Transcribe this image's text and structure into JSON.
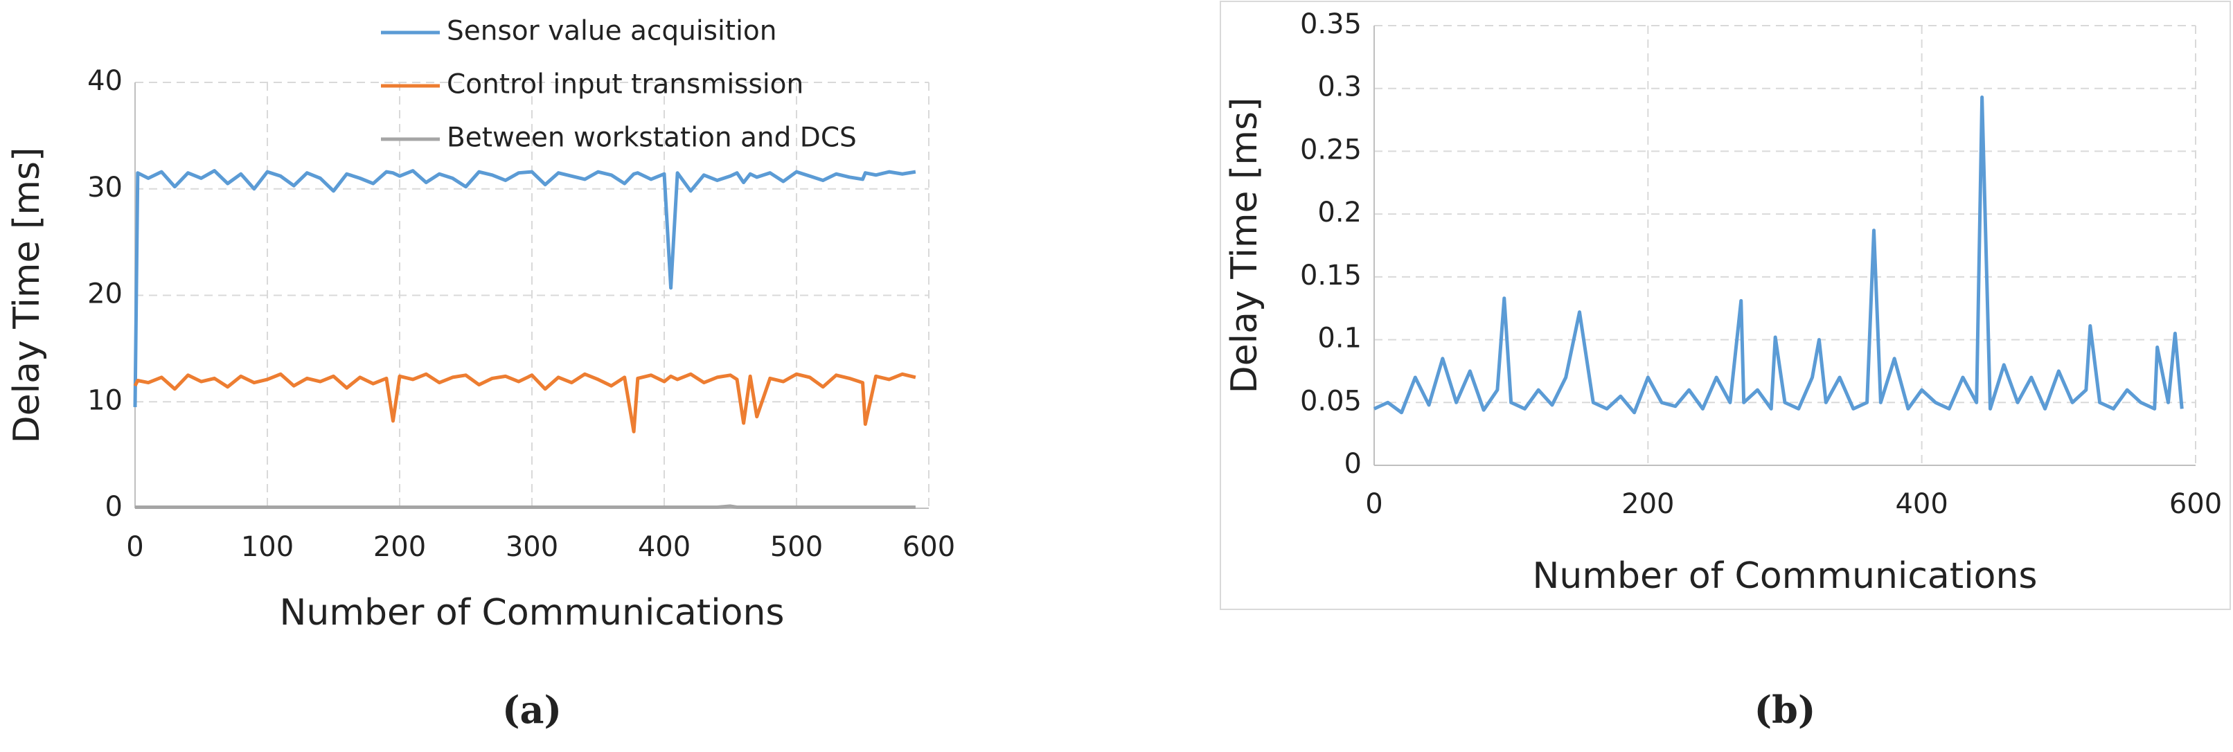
{
  "chart_data": [
    {
      "type": "line",
      "xlabel": "Number of Communications",
      "ylabel": "Delay Time [ms]",
      "caption": "(a)",
      "xlim": [
        0,
        600
      ],
      "xticks": [
        0,
        100,
        200,
        300,
        400,
        500,
        600
      ],
      "ylim": [
        0,
        40
      ],
      "yticks": [
        0,
        10,
        20,
        30,
        40
      ],
      "grid": true,
      "x": [
        0,
        2,
        10,
        20,
        30,
        40,
        50,
        60,
        70,
        80,
        90,
        100,
        110,
        120,
        130,
        140,
        150,
        160,
        170,
        180,
        190,
        195,
        200,
        210,
        220,
        230,
        240,
        250,
        260,
        270,
        280,
        290,
        300,
        310,
        320,
        330,
        340,
        350,
        360,
        370,
        377,
        380,
        390,
        400,
        405,
        410,
        420,
        430,
        440,
        450,
        455,
        460,
        465,
        470,
        480,
        490,
        500,
        510,
        520,
        530,
        540,
        550,
        552,
        560,
        570,
        580,
        590
      ],
      "series": [
        {
          "name": "Sensor value acquisition",
          "color": "#5b9bd5",
          "values": [
            9.5,
            31.5,
            31,
            31.6,
            30.2,
            31.5,
            31,
            31.7,
            30.5,
            31.4,
            30,
            31.6,
            31.2,
            30.3,
            31.5,
            31,
            29.8,
            31.4,
            31,
            30.5,
            31.6,
            31.5,
            31.2,
            31.7,
            30.6,
            31.4,
            31,
            30.2,
            31.6,
            31.3,
            30.8,
            31.5,
            31.6,
            30.4,
            31.5,
            31.2,
            30.9,
            31.6,
            31.3,
            30.5,
            31.4,
            31.5,
            30.9,
            31.4,
            20.7,
            31.5,
            29.8,
            31.3,
            30.8,
            31.2,
            31.5,
            30.6,
            31.4,
            31.1,
            31.5,
            30.7,
            31.6,
            31.2,
            30.8,
            31.4,
            31.1,
            30.9,
            31.5,
            31.3,
            31.6,
            31.4,
            31.6
          ]
        },
        {
          "name": "Control input transmission",
          "color": "#ed7d31",
          "values": [
            11.5,
            12,
            11.8,
            12.3,
            11.2,
            12.5,
            11.9,
            12.2,
            11.4,
            12.4,
            11.8,
            12.1,
            12.6,
            11.5,
            12.2,
            11.9,
            12.4,
            11.3,
            12.3,
            11.7,
            12.2,
            8.2,
            12.4,
            12.1,
            12.6,
            11.8,
            12.3,
            12.5,
            11.6,
            12.2,
            12.4,
            11.9,
            12.5,
            11.2,
            12.3,
            11.8,
            12.6,
            12.1,
            11.5,
            12.3,
            7.2,
            12.2,
            12.5,
            11.9,
            12.4,
            12.1,
            12.6,
            11.8,
            12.3,
            12.5,
            12.1,
            8,
            12.4,
            8.6,
            12.2,
            11.9,
            12.6,
            12.3,
            11.4,
            12.5,
            12.2,
            11.8,
            7.9,
            12.4,
            12.1,
            12.6,
            12.3
          ]
        },
        {
          "name": "Between workstation and DCS",
          "color": "#a5a5a5",
          "values": [
            0.1,
            0.1,
            0.1,
            0.1,
            0.1,
            0.1,
            0.1,
            0.1,
            0.1,
            0.1,
            0.1,
            0.1,
            0.1,
            0.1,
            0.1,
            0.1,
            0.1,
            0.1,
            0.1,
            0.1,
            0.1,
            0.1,
            0.1,
            0.1,
            0.1,
            0.1,
            0.1,
            0.1,
            0.1,
            0.1,
            0.1,
            0.1,
            0.1,
            0.1,
            0.1,
            0.1,
            0.1,
            0.1,
            0.1,
            0.1,
            0.1,
            0.1,
            0.1,
            0.1,
            0.1,
            0.1,
            0.1,
            0.1,
            0.1,
            0.2,
            0.1,
            0.1,
            0.1,
            0.1,
            0.1,
            0.1,
            0.1,
            0.1,
            0.1,
            0.1,
            0.1,
            0.1,
            0.1,
            0.1,
            0.1,
            0.1,
            0.1
          ]
        }
      ]
    },
    {
      "type": "line",
      "xlabel": "Number of Communications",
      "ylabel": "Delay Time [ms]",
      "caption": "(b)",
      "xlim": [
        0,
        600
      ],
      "xticks": [
        0,
        200,
        400,
        600
      ],
      "ylim": [
        0,
        0.35
      ],
      "yticks": [
        0,
        0.05,
        0.1,
        0.15,
        0.2,
        0.25,
        0.3,
        0.35
      ],
      "grid": true,
      "x": [
        0,
        10,
        20,
        30,
        40,
        50,
        60,
        70,
        80,
        90,
        95,
        100,
        110,
        120,
        130,
        140,
        150,
        160,
        170,
        180,
        190,
        200,
        210,
        220,
        230,
        240,
        250,
        260,
        268,
        270,
        280,
        290,
        293,
        300,
        310,
        320,
        325,
        330,
        340,
        350,
        360,
        365,
        370,
        380,
        390,
        400,
        410,
        420,
        430,
        440,
        444,
        450,
        460,
        470,
        480,
        490,
        500,
        510,
        520,
        523,
        530,
        540,
        550,
        560,
        570,
        572,
        580,
        585,
        590
      ],
      "series": [
        {
          "color": "#5b9bd5",
          "values": [
            0.045,
            0.05,
            0.042,
            0.07,
            0.048,
            0.085,
            0.05,
            0.075,
            0.044,
            0.06,
            0.133,
            0.05,
            0.045,
            0.06,
            0.048,
            0.07,
            0.122,
            0.05,
            0.045,
            0.055,
            0.042,
            0.07,
            0.05,
            0.047,
            0.06,
            0.045,
            0.07,
            0.05,
            0.131,
            0.05,
            0.06,
            0.045,
            0.102,
            0.05,
            0.045,
            0.07,
            0.1,
            0.05,
            0.07,
            0.045,
            0.05,
            0.187,
            0.05,
            0.085,
            0.045,
            0.06,
            0.05,
            0.045,
            0.07,
            0.05,
            0.293,
            0.045,
            0.08,
            0.05,
            0.07,
            0.045,
            0.075,
            0.05,
            0.06,
            0.111,
            0.05,
            0.045,
            0.06,
            0.05,
            0.045,
            0.094,
            0.05,
            0.105,
            0.045
          ]
        }
      ]
    }
  ]
}
